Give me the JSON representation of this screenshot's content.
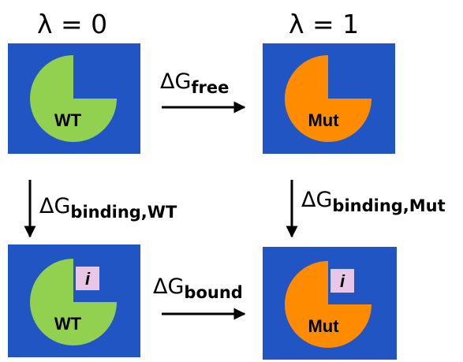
{
  "states": {
    "free_wt": {
      "lambda": "λ = 0",
      "label": "WT"
    },
    "free_mut": {
      "lambda": "λ = 1",
      "label": "Mut"
    },
    "bound_wt": {
      "label": "WT",
      "inhibitor": "i"
    },
    "bound_mut": {
      "label": "Mut",
      "inhibitor": "i"
    }
  },
  "transitions": {
    "free": {
      "symbol": "ΔG",
      "subscript": "free"
    },
    "binding_wt": {
      "symbol": "ΔG",
      "subscript": "binding,WT"
    },
    "binding_mut": {
      "symbol": "ΔG",
      "subscript": "binding,Mut"
    },
    "bound": {
      "symbol": "ΔG",
      "subscript": "bound"
    }
  }
}
